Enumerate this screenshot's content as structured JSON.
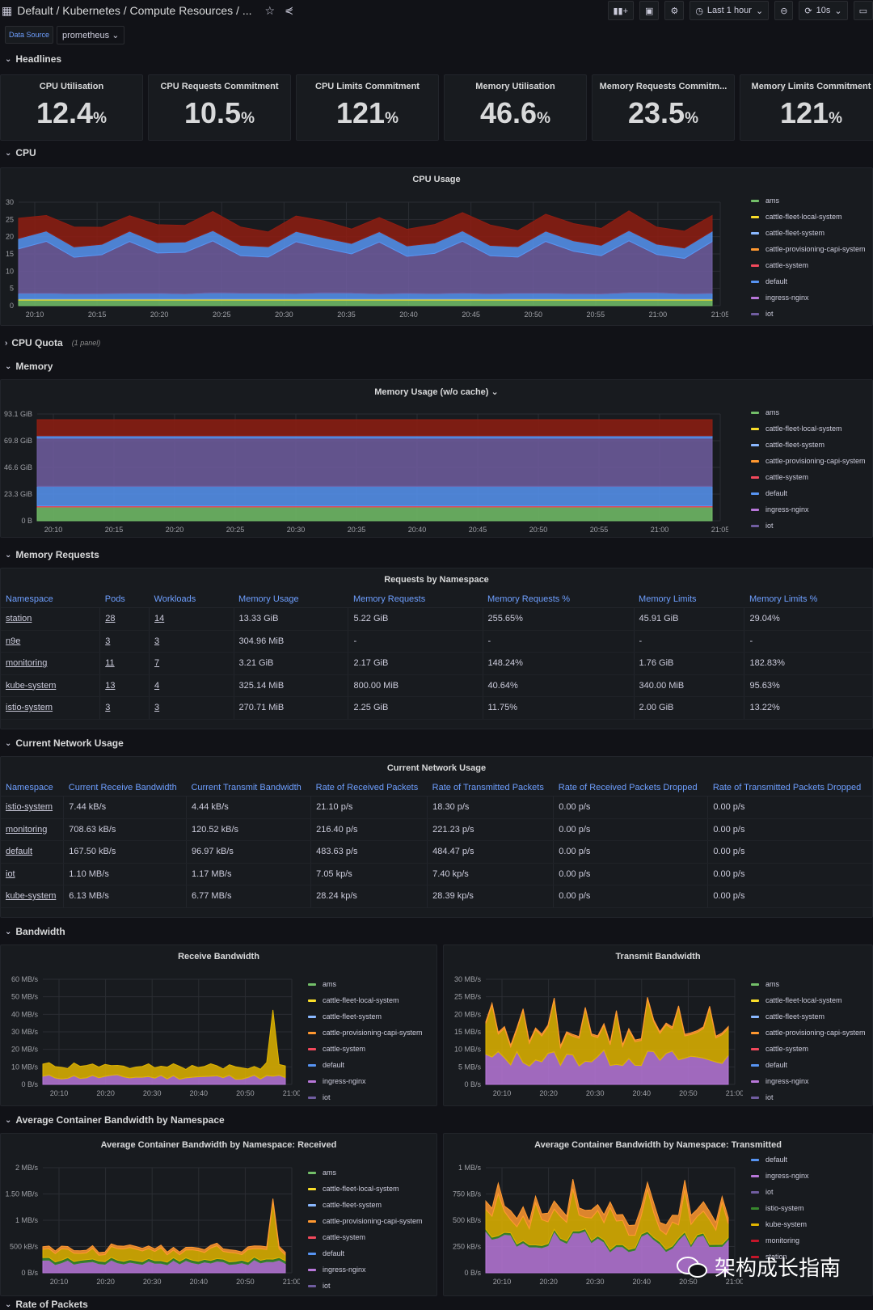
{
  "header": {
    "breadcrumb": "Default  / Kubernetes / Compute Resources / ...",
    "time_range": "Last 1 hour",
    "refresh": "10s"
  },
  "vars": {
    "ds_label": "Data Source",
    "ds_value": "prometheus"
  },
  "rows": {
    "headlines": "Headlines",
    "cpu": "CPU",
    "cpu_quota": "CPU Quota",
    "cpu_quota_count": "(1 panel)",
    "memory": "Memory",
    "memory_requests": "Memory Requests",
    "network": "Current Network Usage",
    "bandwidth": "Bandwidth",
    "avg_bw": "Average Container Bandwidth by Namespace",
    "rate_packets": "Rate of Packets"
  },
  "stats": [
    {
      "title": "CPU Utilisation",
      "value": "12.4",
      "unit": "%"
    },
    {
      "title": "CPU Requests Commitment",
      "value": "10.5",
      "unit": "%"
    },
    {
      "title": "CPU Limits Commitment",
      "value": "121",
      "unit": "%"
    },
    {
      "title": "Memory Utilisation",
      "value": "46.6",
      "unit": "%"
    },
    {
      "title": "Memory Requests Commitm...",
      "value": "23.5",
      "unit": "%"
    },
    {
      "title": "Memory Limits Commitment",
      "value": "121",
      "unit": "%"
    }
  ],
  "colors": {
    "ams": "#73bf69",
    "cattle-fleet-local-system": "#fade2a",
    "cattle-fleet-system": "#8ab8ff",
    "cattle-provisioning-capi-system": "#ff9830",
    "cattle-system": "#f2495c",
    "default": "#5794f2",
    "ingress-nginx": "#b877d9",
    "iot": "#705da0",
    "istio-system": "#37872d",
    "kube-system": "#e0b400",
    "monitoring": "#c4162a",
    "station": "#c4162a"
  },
  "legend_main": [
    "ams",
    "cattle-fleet-local-system",
    "cattle-fleet-system",
    "cattle-provisioning-capi-system",
    "cattle-system",
    "default",
    "ingress-nginx",
    "iot"
  ],
  "legend_tx_avg": [
    "default",
    "ingress-nginx",
    "iot",
    "istio-system",
    "kube-system",
    "monitoring",
    "station"
  ],
  "panels": {
    "cpu_usage": {
      "title": "CPU Usage",
      "yticks": [
        "30",
        "25",
        "20",
        "15",
        "10",
        "5",
        "0"
      ],
      "xticks": [
        "20:10",
        "20:15",
        "20:20",
        "20:25",
        "20:30",
        "20:35",
        "20:40",
        "20:45",
        "20:50",
        "20:55",
        "21:00",
        "21:05"
      ]
    },
    "mem_usage": {
      "title": "Memory Usage (w/o cache)",
      "yticks": [
        "93.1 GiB",
        "69.8 GiB",
        "46.6 GiB",
        "23.3 GiB",
        "0 B"
      ],
      "xticks": [
        "20:10",
        "20:15",
        "20:20",
        "20:25",
        "20:30",
        "20:35",
        "20:40",
        "20:45",
        "20:50",
        "20:55",
        "21:00",
        "21:05"
      ]
    },
    "req_ns": {
      "title": "Requests by Namespace"
    },
    "net_usage": {
      "title": "Current Network Usage"
    },
    "rx_bw": {
      "title": "Receive Bandwidth",
      "yticks": [
        "60 MB/s",
        "50 MB/s",
        "40 MB/s",
        "30 MB/s",
        "20 MB/s",
        "10 MB/s",
        "0 B/s"
      ],
      "xticks": [
        "20:10",
        "20:20",
        "20:30",
        "20:40",
        "20:50",
        "21:00"
      ]
    },
    "tx_bw": {
      "title": "Transmit Bandwidth",
      "yticks": [
        "30 MB/s",
        "25 MB/s",
        "20 MB/s",
        "15 MB/s",
        "10 MB/s",
        "5 MB/s",
        "0 B/s"
      ],
      "xticks": [
        "20:10",
        "20:20",
        "20:30",
        "20:40",
        "20:50",
        "21:00"
      ]
    },
    "avg_rx": {
      "title": "Average Container Bandwidth by Namespace: Received",
      "yticks": [
        "2 MB/s",
        "1.50 MB/s",
        "1 MB/s",
        "500 kB/s",
        "0 B/s"
      ],
      "xticks": [
        "20:10",
        "20:20",
        "20:30",
        "20:40",
        "20:50",
        "21:00"
      ]
    },
    "avg_tx": {
      "title": "Average Container Bandwidth by Namespace: Transmitted",
      "yticks": [
        "1 MB/s",
        "750 kB/s",
        "500 kB/s",
        "250 kB/s",
        "0 B/s"
      ],
      "xticks": [
        "20:10",
        "20:20",
        "20:30",
        "20:40",
        "20:50",
        "21:00"
      ]
    }
  },
  "req_table": {
    "columns": [
      "Namespace",
      "Pods",
      "Workloads",
      "Memory Usage",
      "Memory Requests",
      "Memory Requests %",
      "Memory Limits",
      "Memory Limits %"
    ],
    "rows": [
      [
        "station",
        "28",
        "14",
        "13.33 GiB",
        "5.22 GiB",
        "255.65%",
        "45.91 GiB",
        "29.04%"
      ],
      [
        "n9e",
        "3",
        "3",
        "304.96 MiB",
        "-",
        "-",
        "-",
        "-"
      ],
      [
        "monitoring",
        "11",
        "7",
        "3.21 GiB",
        "2.17 GiB",
        "148.24%",
        "1.76 GiB",
        "182.83%"
      ],
      [
        "kube-system",
        "13",
        "4",
        "325.14 MiB",
        "800.00 MiB",
        "40.64%",
        "340.00 MiB",
        "95.63%"
      ],
      [
        "istio-system",
        "3",
        "3",
        "270.71 MiB",
        "2.25 GiB",
        "11.75%",
        "2.00 GiB",
        "13.22%"
      ]
    ]
  },
  "net_table": {
    "columns": [
      "Namespace",
      "Current Receive Bandwidth",
      "Current Transmit Bandwidth",
      "Rate of Received Packets",
      "Rate of Transmitted Packets",
      "Rate of Received Packets Dropped",
      "Rate of Transmitted Packets Dropped"
    ],
    "rows": [
      [
        "istio-system",
        "7.44 kB/s",
        "4.44 kB/s",
        "21.10 p/s",
        "18.30 p/s",
        "0.00 p/s",
        "0.00 p/s"
      ],
      [
        "monitoring",
        "708.63 kB/s",
        "120.52 kB/s",
        "216.40 p/s",
        "221.23 p/s",
        "0.00 p/s",
        "0.00 p/s"
      ],
      [
        "default",
        "167.50 kB/s",
        "96.97 kB/s",
        "483.63 p/s",
        "484.47 p/s",
        "0.00 p/s",
        "0.00 p/s"
      ],
      [
        "iot",
        "1.10 MB/s",
        "1.17 MB/s",
        "7.05 kp/s",
        "7.40 kp/s",
        "0.00 p/s",
        "0.00 p/s"
      ],
      [
        "kube-system",
        "6.13 MB/s",
        "6.77 MB/s",
        "28.24 kp/s",
        "28.39 kp/s",
        "0.00 p/s",
        "0.00 p/s"
      ]
    ]
  },
  "watermark": "架构成长指南"
}
